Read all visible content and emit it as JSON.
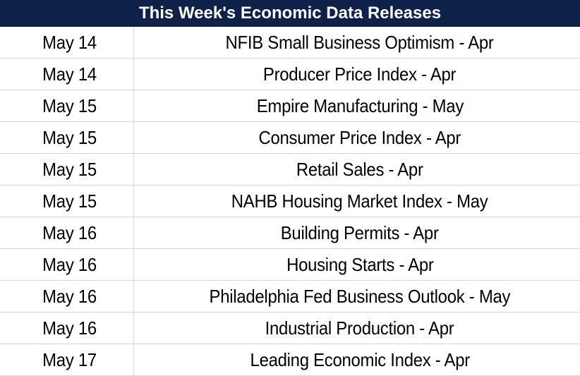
{
  "title": "This Week's Economic Data Releases",
  "rows": [
    {
      "date": "May 14",
      "event": "NFIB Small Business Optimism - Apr"
    },
    {
      "date": "May 14",
      "event": "Producer Price Index - Apr"
    },
    {
      "date": "May 15",
      "event": "Empire Manufacturing - May"
    },
    {
      "date": "May 15",
      "event": "Consumer Price Index - Apr"
    },
    {
      "date": "May 15",
      "event": "Retail Sales - Apr"
    },
    {
      "date": "May 15",
      "event": "NAHB Housing Market Index - May"
    },
    {
      "date": "May 16",
      "event": "Building Permits - Apr"
    },
    {
      "date": "May 16",
      "event": "Housing Starts - Apr"
    },
    {
      "date": "May 16",
      "event": "Philadelphia Fed Business Outlook - May"
    },
    {
      "date": "May 16",
      "event": "Industrial Production - Apr"
    },
    {
      "date": "May 17",
      "event": "Leading Economic Index - Apr"
    }
  ],
  "colors": {
    "header_background": "#0e2149",
    "header_text": "#ffffff",
    "grid_line": "#d4d4d4"
  }
}
